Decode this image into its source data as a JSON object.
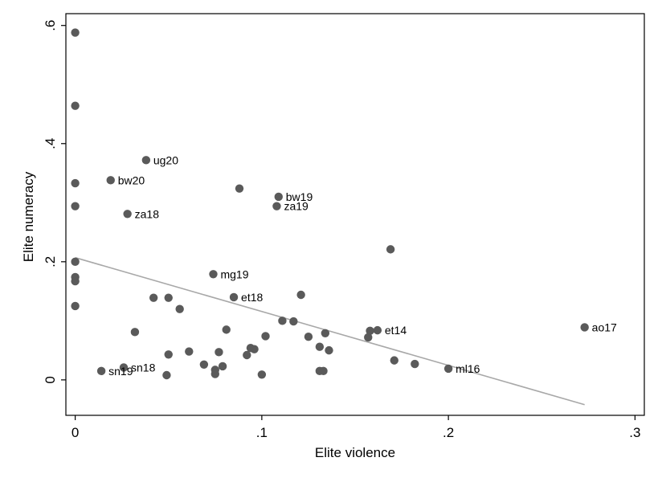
{
  "chart_data": {
    "type": "scatter",
    "xlabel": "Elite violence",
    "ylabel": "Elite numeracy",
    "xlim": [
      -0.005,
      0.305
    ],
    "ylim": [
      -0.06,
      0.62
    ],
    "x_ticks": [
      {
        "value": 0,
        "label": "0"
      },
      {
        "value": 0.1,
        "label": ".1"
      },
      {
        "value": 0.2,
        "label": ".2"
      },
      {
        "value": 0.3,
        "label": ".3"
      }
    ],
    "y_ticks": [
      {
        "value": 0,
        "label": "0"
      },
      {
        "value": 0.2,
        "label": ".2"
      },
      {
        "value": 0.4,
        "label": ".4"
      },
      {
        "value": 0.6,
        "label": ".6"
      }
    ],
    "grid": false,
    "legend": "none",
    "colors": {
      "marker": "#5a5a5a",
      "fit_line": "#a8a8a8",
      "frame": "#000000"
    },
    "points": [
      {
        "x": 0.0,
        "y": 0.588,
        "label": ""
      },
      {
        "x": 0.0,
        "y": 0.464,
        "label": ""
      },
      {
        "x": 0.0,
        "y": 0.333,
        "label": ""
      },
      {
        "x": 0.0,
        "y": 0.294,
        "label": ""
      },
      {
        "x": 0.0,
        "y": 0.2,
        "label": ""
      },
      {
        "x": 0.0,
        "y": 0.174,
        "label": ""
      },
      {
        "x": 0.0,
        "y": 0.167,
        "label": ""
      },
      {
        "x": 0.0,
        "y": 0.125,
        "label": ""
      },
      {
        "x": 0.038,
        "y": 0.372,
        "label": "ug20"
      },
      {
        "x": 0.019,
        "y": 0.338,
        "label": "bw20"
      },
      {
        "x": 0.028,
        "y": 0.281,
        "label": "za18"
      },
      {
        "x": 0.088,
        "y": 0.324,
        "label": ""
      },
      {
        "x": 0.109,
        "y": 0.31,
        "label": "bw19"
      },
      {
        "x": 0.108,
        "y": 0.294,
        "label": "za19"
      },
      {
        "x": 0.169,
        "y": 0.221,
        "label": ""
      },
      {
        "x": 0.074,
        "y": 0.179,
        "label": "mg19"
      },
      {
        "x": 0.085,
        "y": 0.14,
        "label": "et18"
      },
      {
        "x": 0.121,
        "y": 0.144,
        "label": ""
      },
      {
        "x": 0.042,
        "y": 0.139,
        "label": ""
      },
      {
        "x": 0.05,
        "y": 0.139,
        "label": ""
      },
      {
        "x": 0.056,
        "y": 0.12,
        "label": ""
      },
      {
        "x": 0.032,
        "y": 0.081,
        "label": ""
      },
      {
        "x": 0.081,
        "y": 0.085,
        "label": ""
      },
      {
        "x": 0.111,
        "y": 0.1,
        "label": ""
      },
      {
        "x": 0.117,
        "y": 0.099,
        "label": ""
      },
      {
        "x": 0.102,
        "y": 0.074,
        "label": ""
      },
      {
        "x": 0.134,
        "y": 0.079,
        "label": ""
      },
      {
        "x": 0.158,
        "y": 0.083,
        "label": ""
      },
      {
        "x": 0.162,
        "y": 0.084,
        "label": "et14"
      },
      {
        "x": 0.157,
        "y": 0.072,
        "label": ""
      },
      {
        "x": 0.125,
        "y": 0.073,
        "label": ""
      },
      {
        "x": 0.273,
        "y": 0.089,
        "label": "ao17"
      },
      {
        "x": 0.094,
        "y": 0.054,
        "label": ""
      },
      {
        "x": 0.096,
        "y": 0.052,
        "label": ""
      },
      {
        "x": 0.131,
        "y": 0.056,
        "label": ""
      },
      {
        "x": 0.136,
        "y": 0.05,
        "label": ""
      },
      {
        "x": 0.061,
        "y": 0.048,
        "label": ""
      },
      {
        "x": 0.077,
        "y": 0.047,
        "label": ""
      },
      {
        "x": 0.05,
        "y": 0.043,
        "label": ""
      },
      {
        "x": 0.092,
        "y": 0.042,
        "label": ""
      },
      {
        "x": 0.171,
        "y": 0.033,
        "label": ""
      },
      {
        "x": 0.182,
        "y": 0.027,
        "label": ""
      },
      {
        "x": 0.069,
        "y": 0.026,
        "label": ""
      },
      {
        "x": 0.079,
        "y": 0.023,
        "label": ""
      },
      {
        "x": 0.026,
        "y": 0.021,
        "label": "sn18"
      },
      {
        "x": 0.2,
        "y": 0.019,
        "label": "ml16"
      },
      {
        "x": 0.075,
        "y": 0.017,
        "label": ""
      },
      {
        "x": 0.014,
        "y": 0.015,
        "label": "sn19"
      },
      {
        "x": 0.131,
        "y": 0.015,
        "label": ""
      },
      {
        "x": 0.133,
        "y": 0.015,
        "label": ""
      },
      {
        "x": 0.075,
        "y": 0.01,
        "label": ""
      },
      {
        "x": 0.049,
        "y": 0.008,
        "label": ""
      },
      {
        "x": 0.1,
        "y": 0.009,
        "label": ""
      }
    ],
    "fit_line": {
      "x": [
        0.0,
        0.273
      ],
      "y": [
        0.207,
        -0.042
      ]
    }
  }
}
